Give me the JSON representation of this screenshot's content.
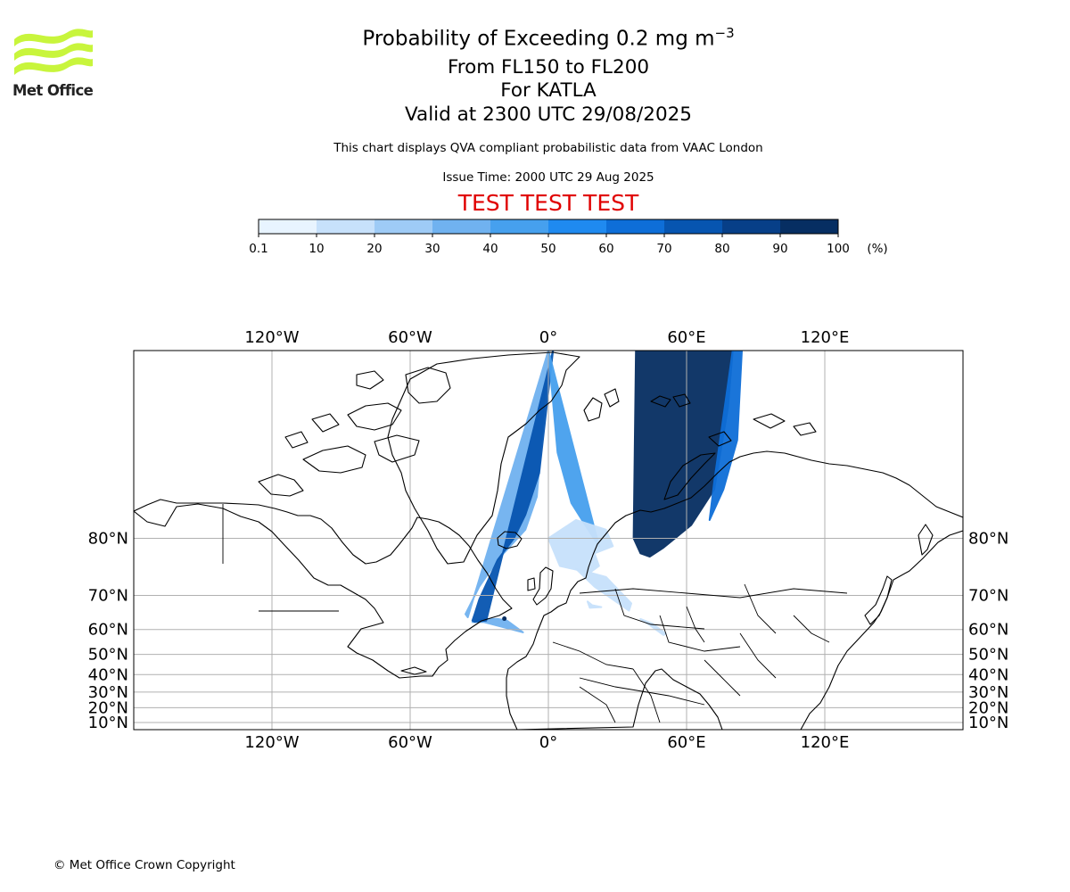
{
  "logo": {
    "text": "Met Office",
    "colors": {
      "waves": "#c8f53c",
      "text": "#222222"
    }
  },
  "header": {
    "title_main": "Probability of Exceeding 0.2 mg m",
    "title_sup": "−3",
    "line1": "From FL150 to FL200",
    "line2": "For KATLA",
    "line3": "Valid at 2300 UTC 29/08/2025",
    "description": "This chart displays QVA compliant probabilistic data from VAAC London",
    "issue_time": "Issue Time: 2000 UTC 29 Aug 2025",
    "test_banner": "TEST TEST TEST",
    "test_color": "#e00000"
  },
  "colorbar": {
    "ticks": [
      "0.1",
      "10",
      "20",
      "30",
      "40",
      "50",
      "60",
      "70",
      "80",
      "90",
      "100"
    ],
    "unit": "(%)",
    "colors": [
      "#e8f4ff",
      "#c7e1fb",
      "#9ecbf6",
      "#70b2f0",
      "#46a0ee",
      "#1f8af0",
      "#0e6ed8",
      "#0755b0",
      "#073f88",
      "#062e62"
    ]
  },
  "chart_data": {
    "type": "map",
    "projection": "Mercator",
    "extent": {
      "lon": [
        -180,
        180
      ],
      "lat": [
        5,
        89
      ]
    },
    "grid": true,
    "xticks_lon": [
      -120,
      -60,
      0,
      60,
      120
    ],
    "xtick_labels": [
      "120°W",
      "60°W",
      "0°",
      "60°E",
      "120°E"
    ],
    "yticks_lat": [
      80,
      70,
      60,
      50,
      40,
      30,
      20,
      10
    ],
    "ytick_labels": [
      "80°N",
      "70°N",
      "60°N",
      "50°N",
      "40°N",
      "30°N",
      "20°N",
      "10°N"
    ],
    "volcano": {
      "name": "KATLA",
      "lon": -19.1,
      "lat": 63.6
    },
    "plumes": [
      {
        "band": 3,
        "points": [
          [
            -35,
            64
          ],
          [
            -36,
            65
          ],
          [
            -30,
            72
          ],
          [
            -22,
            77
          ],
          [
            -10,
            81
          ],
          [
            -5,
            84
          ],
          [
            0,
            89
          ]
        ]
      },
      {
        "band": 3,
        "points": [
          [
            -18,
            63
          ],
          [
            -22,
            63.5
          ],
          [
            -27,
            63.5
          ],
          [
            -31,
            63
          ],
          [
            -33,
            62.5
          ],
          [
            -28,
            62.5
          ],
          [
            -18,
            60.5
          ],
          [
            -11,
            59
          ]
        ]
      },
      {
        "band": 7,
        "points": [
          [
            -27,
            63
          ],
          [
            -32,
            62.6
          ],
          [
            -33,
            63
          ],
          [
            -32,
            65
          ],
          [
            -30,
            69
          ],
          [
            -27,
            72.5
          ],
          [
            -22,
            77
          ],
          [
            -15,
            80
          ],
          [
            -10,
            82.5
          ],
          [
            -4,
            85.5
          ],
          [
            2,
            89
          ]
        ]
      },
      {
        "band": 4,
        "points": [
          [
            0,
            89
          ],
          [
            4,
            86.5
          ],
          [
            10,
            83.5
          ],
          [
            16,
            81.5
          ],
          [
            22,
            79
          ]
        ]
      },
      {
        "band": 1,
        "points": [
          [
            5,
            76
          ],
          [
            18,
            74.8
          ],
          [
            22,
            76
          ],
          [
            20,
            78
          ],
          [
            28,
            79
          ],
          [
            25,
            81
          ],
          [
            12,
            82
          ],
          [
            0,
            80
          ]
        ]
      },
      {
        "band": 1,
        "points": [
          [
            12,
            75.5
          ],
          [
            20,
            72
          ],
          [
            35,
            66
          ],
          [
            36,
            68
          ],
          [
            25,
            74
          ]
        ]
      },
      {
        "band": 1,
        "points": [
          [
            17,
            68.5
          ],
          [
            19,
            67.5
          ],
          [
            23,
            67
          ],
          [
            18,
            66.8
          ]
        ]
      },
      {
        "band": 1,
        "points": [
          [
            40,
            63.5
          ],
          [
            44,
            61.5
          ],
          [
            50,
            58
          ],
          [
            51,
            58.5
          ],
          [
            45,
            62
          ]
        ]
      },
      {
        "band": 9,
        "points": [
          [
            37,
            80
          ],
          [
            40,
            78
          ],
          [
            44,
            77.5
          ],
          [
            50,
            78.8
          ],
          [
            62,
            81.5
          ],
          [
            72,
            84.5
          ],
          [
            78,
            88
          ],
          [
            80,
            89
          ],
          [
            38,
            89
          ]
        ]
      },
      {
        "band": 6,
        "points": [
          [
            70,
            82
          ],
          [
            76,
            84.5
          ],
          [
            82,
            87
          ],
          [
            84,
            89
          ],
          [
            80,
            89
          ],
          [
            72,
            85
          ]
        ]
      }
    ]
  },
  "copyright": "© Met Office Crown Copyright"
}
